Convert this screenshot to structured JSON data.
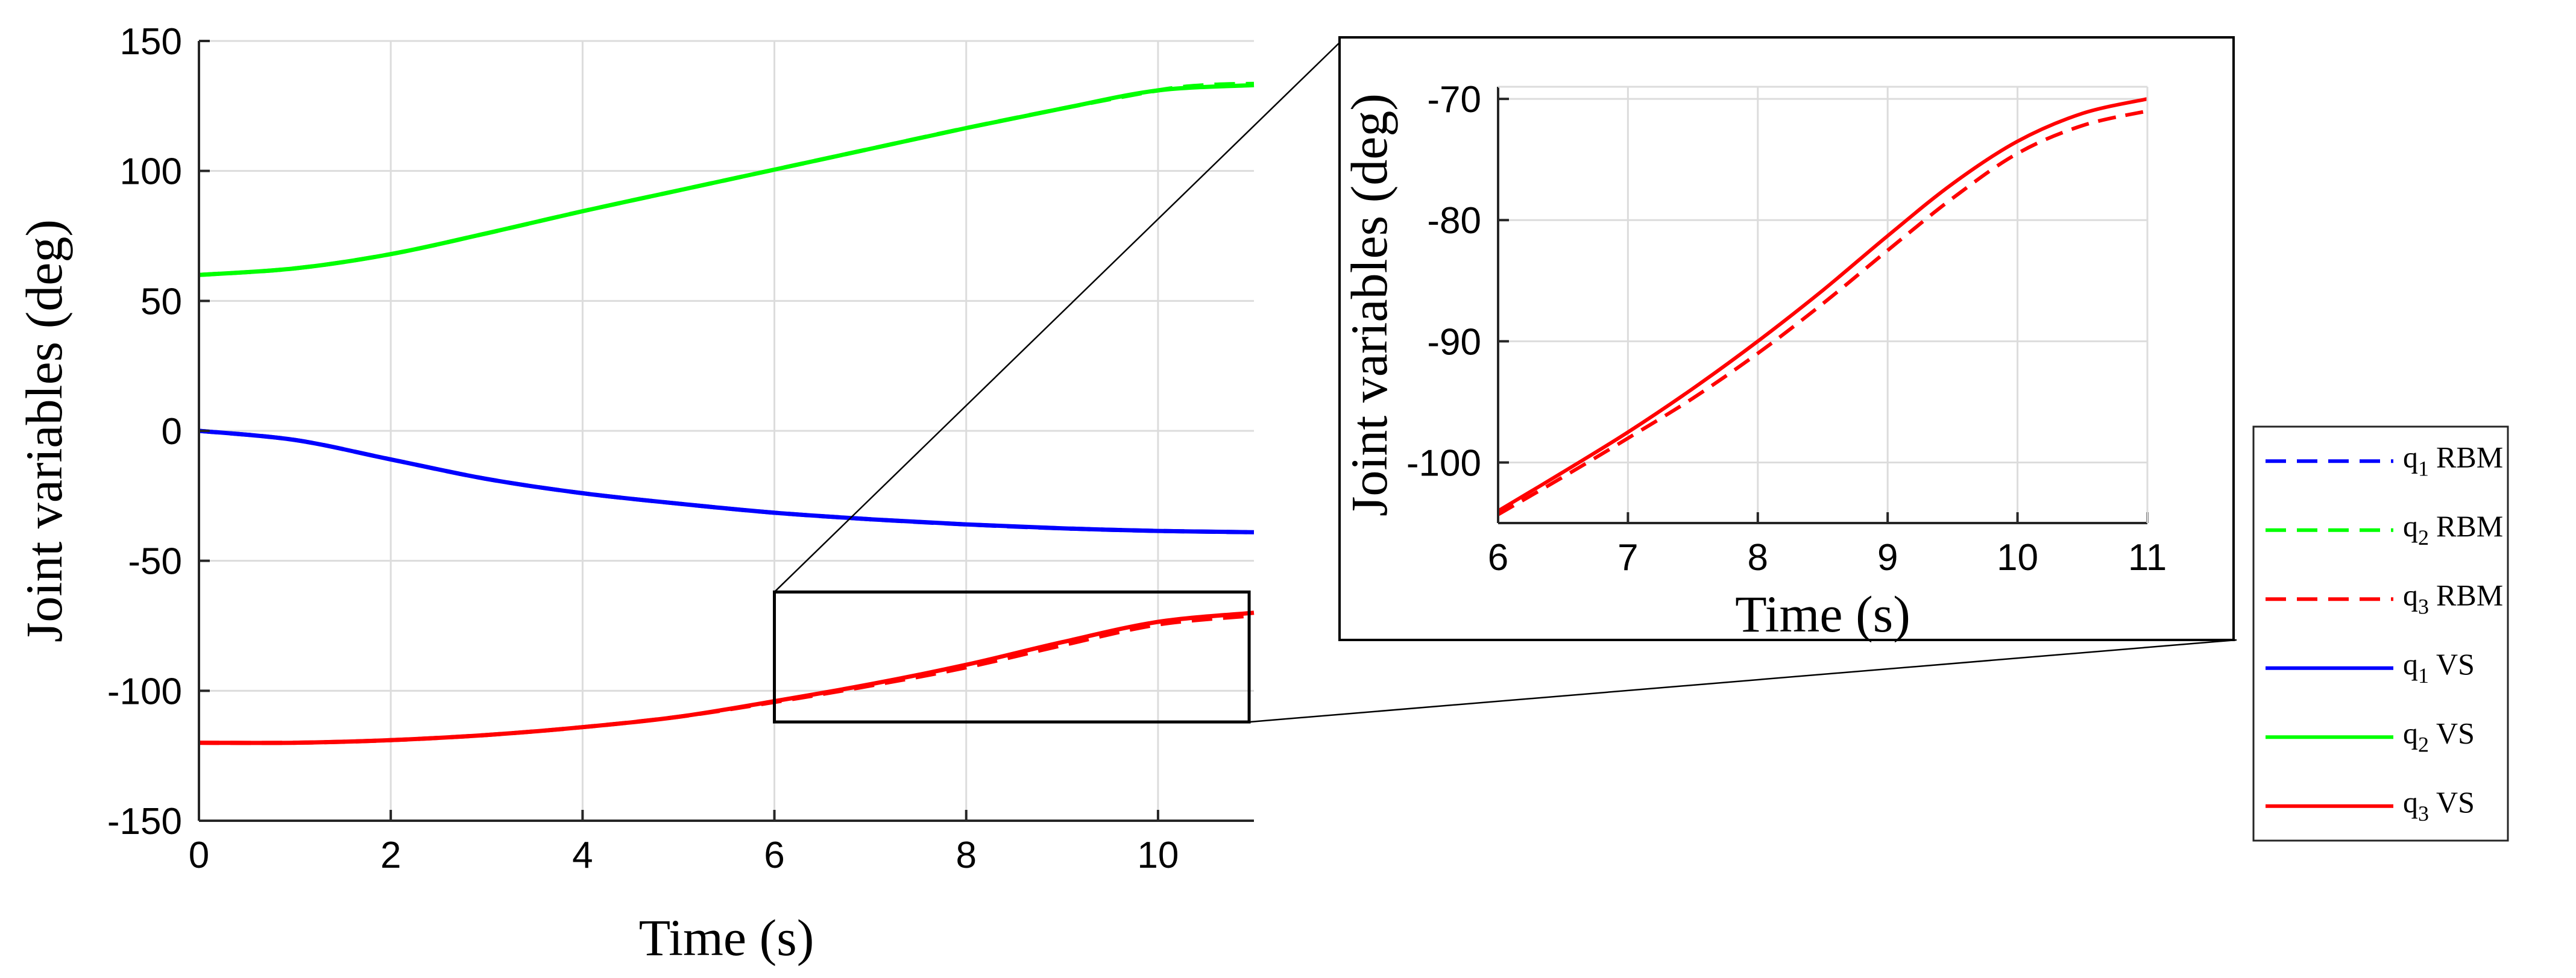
{
  "chart_data": [
    {
      "type": "line",
      "xlabel": "Time (s)",
      "ylabel": "Joint variables (deg)",
      "xlim": [
        0,
        11
      ],
      "ylim": [
        -150,
        150
      ],
      "xticks": [
        0,
        2,
        4,
        6,
        8,
        10
      ],
      "yticks": [
        -150,
        -100,
        -50,
        0,
        50,
        100,
        150
      ],
      "grid": true,
      "series": [
        {
          "name": "q1 RBM",
          "color": "#0000ff",
          "dash": true,
          "x": [
            0,
            1,
            2,
            3,
            4,
            5,
            6,
            7,
            8,
            9,
            10,
            11
          ],
          "y": [
            0,
            -3.5,
            -11,
            -18.5,
            -24,
            -28,
            -31.5,
            -34,
            -36,
            -37.5,
            -38.5,
            -39
          ]
        },
        {
          "name": "q2 RBM",
          "color": "#00ff00",
          "dash": true,
          "x": [
            0,
            1,
            2,
            3,
            4,
            5,
            6,
            7,
            8,
            9,
            10,
            10.5,
            11
          ],
          "y": [
            60,
            62.5,
            68,
            76,
            84.5,
            92.5,
            100.5,
            108.5,
            116.5,
            124,
            131,
            133,
            133.5
          ]
        },
        {
          "name": "q3 RBM",
          "color": "#ff0000",
          "dash": true,
          "x": [
            0,
            1,
            2,
            3,
            4,
            5,
            6,
            7,
            8,
            9,
            10,
            11
          ],
          "y": [
            -120,
            -120,
            -119,
            -117,
            -114,
            -110,
            -104.3,
            -98,
            -91,
            -82.5,
            -74.5,
            -71
          ]
        },
        {
          "name": "q1 VS",
          "color": "#0000ff",
          "dash": false,
          "x": [
            0,
            1,
            2,
            3,
            4,
            5,
            6,
            7,
            8,
            9,
            10,
            11
          ],
          "y": [
            0,
            -3.5,
            -11,
            -18.5,
            -24,
            -28,
            -31.5,
            -34,
            -36,
            -37.5,
            -38.5,
            -39
          ]
        },
        {
          "name": "q2 VS",
          "color": "#00ff00",
          "dash": false,
          "x": [
            0,
            1,
            2,
            3,
            4,
            5,
            6,
            7,
            8,
            9,
            10,
            11
          ],
          "y": [
            60,
            62.5,
            68,
            76,
            84.5,
            92.5,
            100.5,
            108.5,
            116.5,
            124,
            131,
            133
          ]
        },
        {
          "name": "q3 VS",
          "color": "#ff0000",
          "dash": false,
          "x": [
            0,
            1,
            2,
            3,
            4,
            5,
            6,
            7,
            8,
            9,
            10,
            11
          ],
          "y": [
            -120,
            -120,
            -119,
            -117,
            -114,
            -110,
            -104,
            -97.5,
            -90,
            -81.3,
            -73.5,
            -70
          ]
        }
      ]
    },
    {
      "type": "line",
      "xlabel": "Time (s)",
      "ylabel": "Joint variables (deg)",
      "xlim": [
        6,
        11
      ],
      "ylim": [
        -105,
        -69
      ],
      "xticks": [
        6,
        7,
        8,
        9,
        10,
        11
      ],
      "yticks": [
        -100,
        -90,
        -80,
        -70
      ],
      "grid": true,
      "series": [
        {
          "name": "q3 RBM",
          "color": "#ff0000",
          "dash": true,
          "x": [
            6,
            6.5,
            7,
            7.5,
            8,
            8.5,
            9,
            9.5,
            10,
            10.5,
            11
          ],
          "y": [
            -104.3,
            -101.2,
            -98,
            -94.7,
            -91,
            -86.9,
            -82.5,
            -78.2,
            -74.5,
            -72.2,
            -71
          ]
        },
        {
          "name": "q3 VS",
          "color": "#ff0000",
          "dash": false,
          "x": [
            6,
            6.5,
            7,
            7.5,
            8,
            8.5,
            9,
            9.5,
            10,
            10.5,
            11
          ],
          "y": [
            -104,
            -100.8,
            -97.5,
            -93.9,
            -90,
            -85.8,
            -81.3,
            -77,
            -73.5,
            -71.2,
            -70
          ]
        }
      ]
    }
  ],
  "legend": {
    "entries": [
      {
        "q": "q",
        "sub": "1",
        "method": "RBM",
        "color": "#0000ff",
        "dash": true
      },
      {
        "q": "q",
        "sub": "2",
        "method": "RBM",
        "color": "#00ff00",
        "dash": true
      },
      {
        "q": "q",
        "sub": "3",
        "method": "RBM",
        "color": "#ff0000",
        "dash": true
      },
      {
        "q": "q",
        "sub": "1",
        "method": "VS",
        "color": "#0000ff",
        "dash": false
      },
      {
        "q": "q",
        "sub": "2",
        "method": "VS",
        "color": "#00ff00",
        "dash": false
      },
      {
        "q": "q",
        "sub": "3",
        "method": "VS",
        "color": "#ff0000",
        "dash": false
      }
    ]
  }
}
